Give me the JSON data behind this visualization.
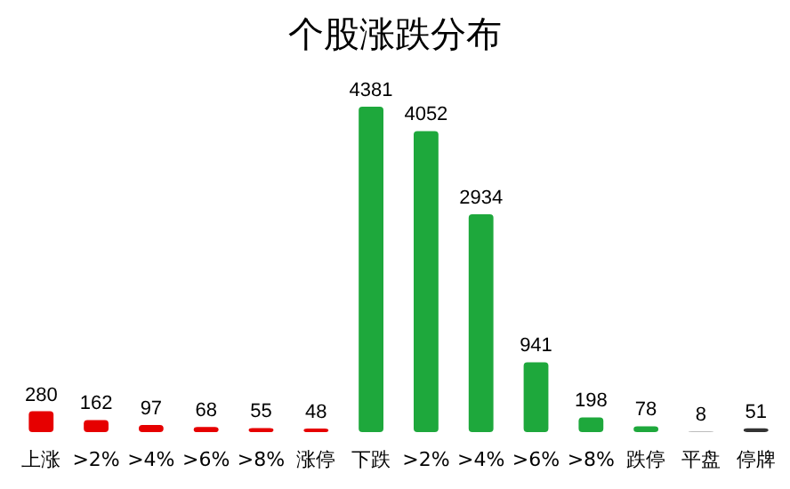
{
  "chart_data": {
    "type": "bar",
    "title": "个股涨跌分布",
    "categories": [
      "上涨",
      ">2%",
      ">4%",
      ">6%",
      ">8%",
      "涨停",
      "下跌",
      ">2%",
      ">4%",
      ">6%",
      ">8%",
      "跌停",
      "平盘",
      "停牌"
    ],
    "values": [
      280,
      162,
      97,
      68,
      55,
      48,
      4381,
      4052,
      2934,
      941,
      198,
      78,
      8,
      51
    ],
    "colors": [
      "#e60000",
      "#e60000",
      "#e60000",
      "#e60000",
      "#e60000",
      "#e60000",
      "#1ea83c",
      "#1ea83c",
      "#1ea83c",
      "#1ea83c",
      "#1ea83c",
      "#1ea83c",
      "#a6a6a6",
      "#333333"
    ],
    "data_labels": true
  }
}
